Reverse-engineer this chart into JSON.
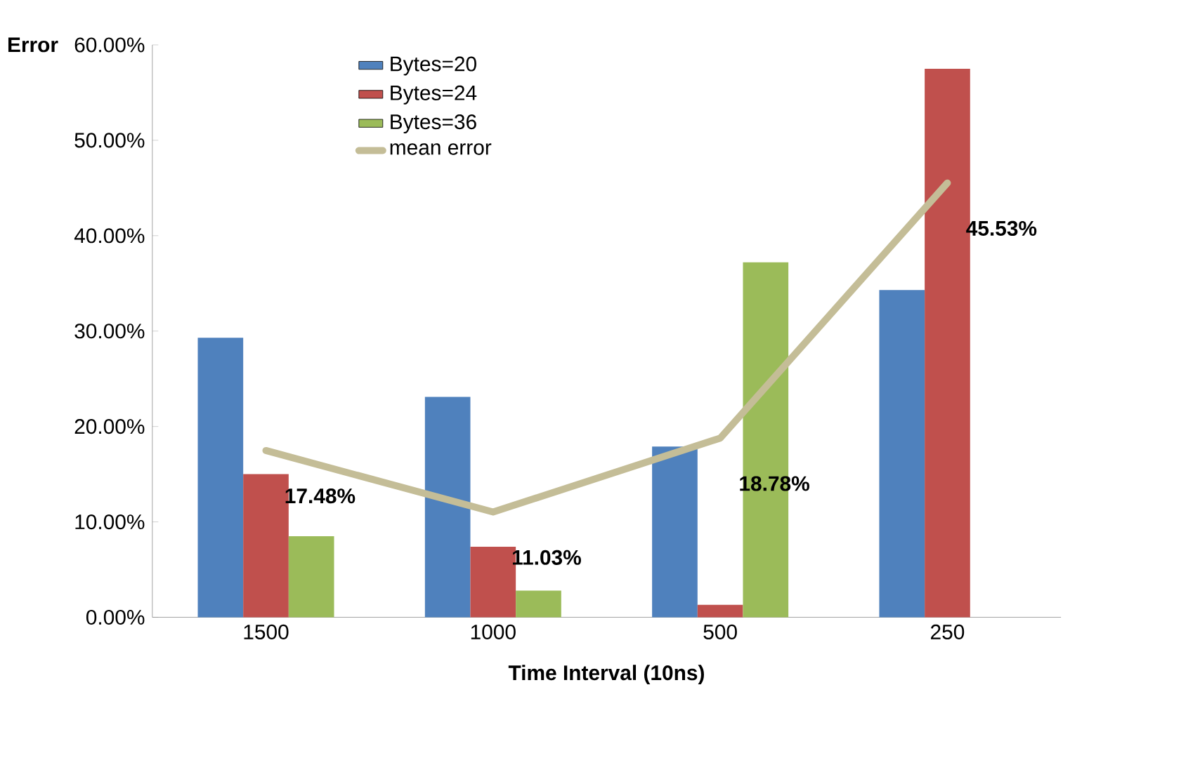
{
  "chart_data": {
    "type": "bar",
    "xlabel": "Time Interval (10ns)",
    "ylabel": "Error",
    "categories": [
      "1500",
      "1000",
      "500",
      "250"
    ],
    "ylim": [
      0,
      60
    ],
    "yticks": [
      {
        "value": 0,
        "label": "0.00%"
      },
      {
        "value": 10,
        "label": "10.00%"
      },
      {
        "value": 20,
        "label": "20.00%"
      },
      {
        "value": 30,
        "label": "30.00%"
      },
      {
        "value": 40,
        "label": "40.00%"
      },
      {
        "value": 50,
        "label": "50.00%"
      },
      {
        "value": 60,
        "label": "60.00%"
      }
    ],
    "series": [
      {
        "name": "Bytes=20",
        "color": "#4f81bd",
        "values": [
          29.3,
          23.1,
          17.9,
          34.3
        ]
      },
      {
        "name": "Bytes=24",
        "color": "#c0504d",
        "values": [
          15.0,
          7.4,
          1.3,
          57.5
        ]
      },
      {
        "name": "Bytes=36",
        "color": "#9bbb59",
        "values": [
          8.5,
          2.8,
          37.2,
          null
        ]
      },
      {
        "name": "mean error",
        "type": "line",
        "color": "#c4bd97",
        "values": [
          17.48,
          11.03,
          18.78,
          45.53
        ],
        "value_labels": [
          "17.48%",
          "11.03%",
          "18.78%",
          "45.53%"
        ]
      }
    ],
    "legend": "top",
    "grid": false,
    "marker": "none"
  }
}
